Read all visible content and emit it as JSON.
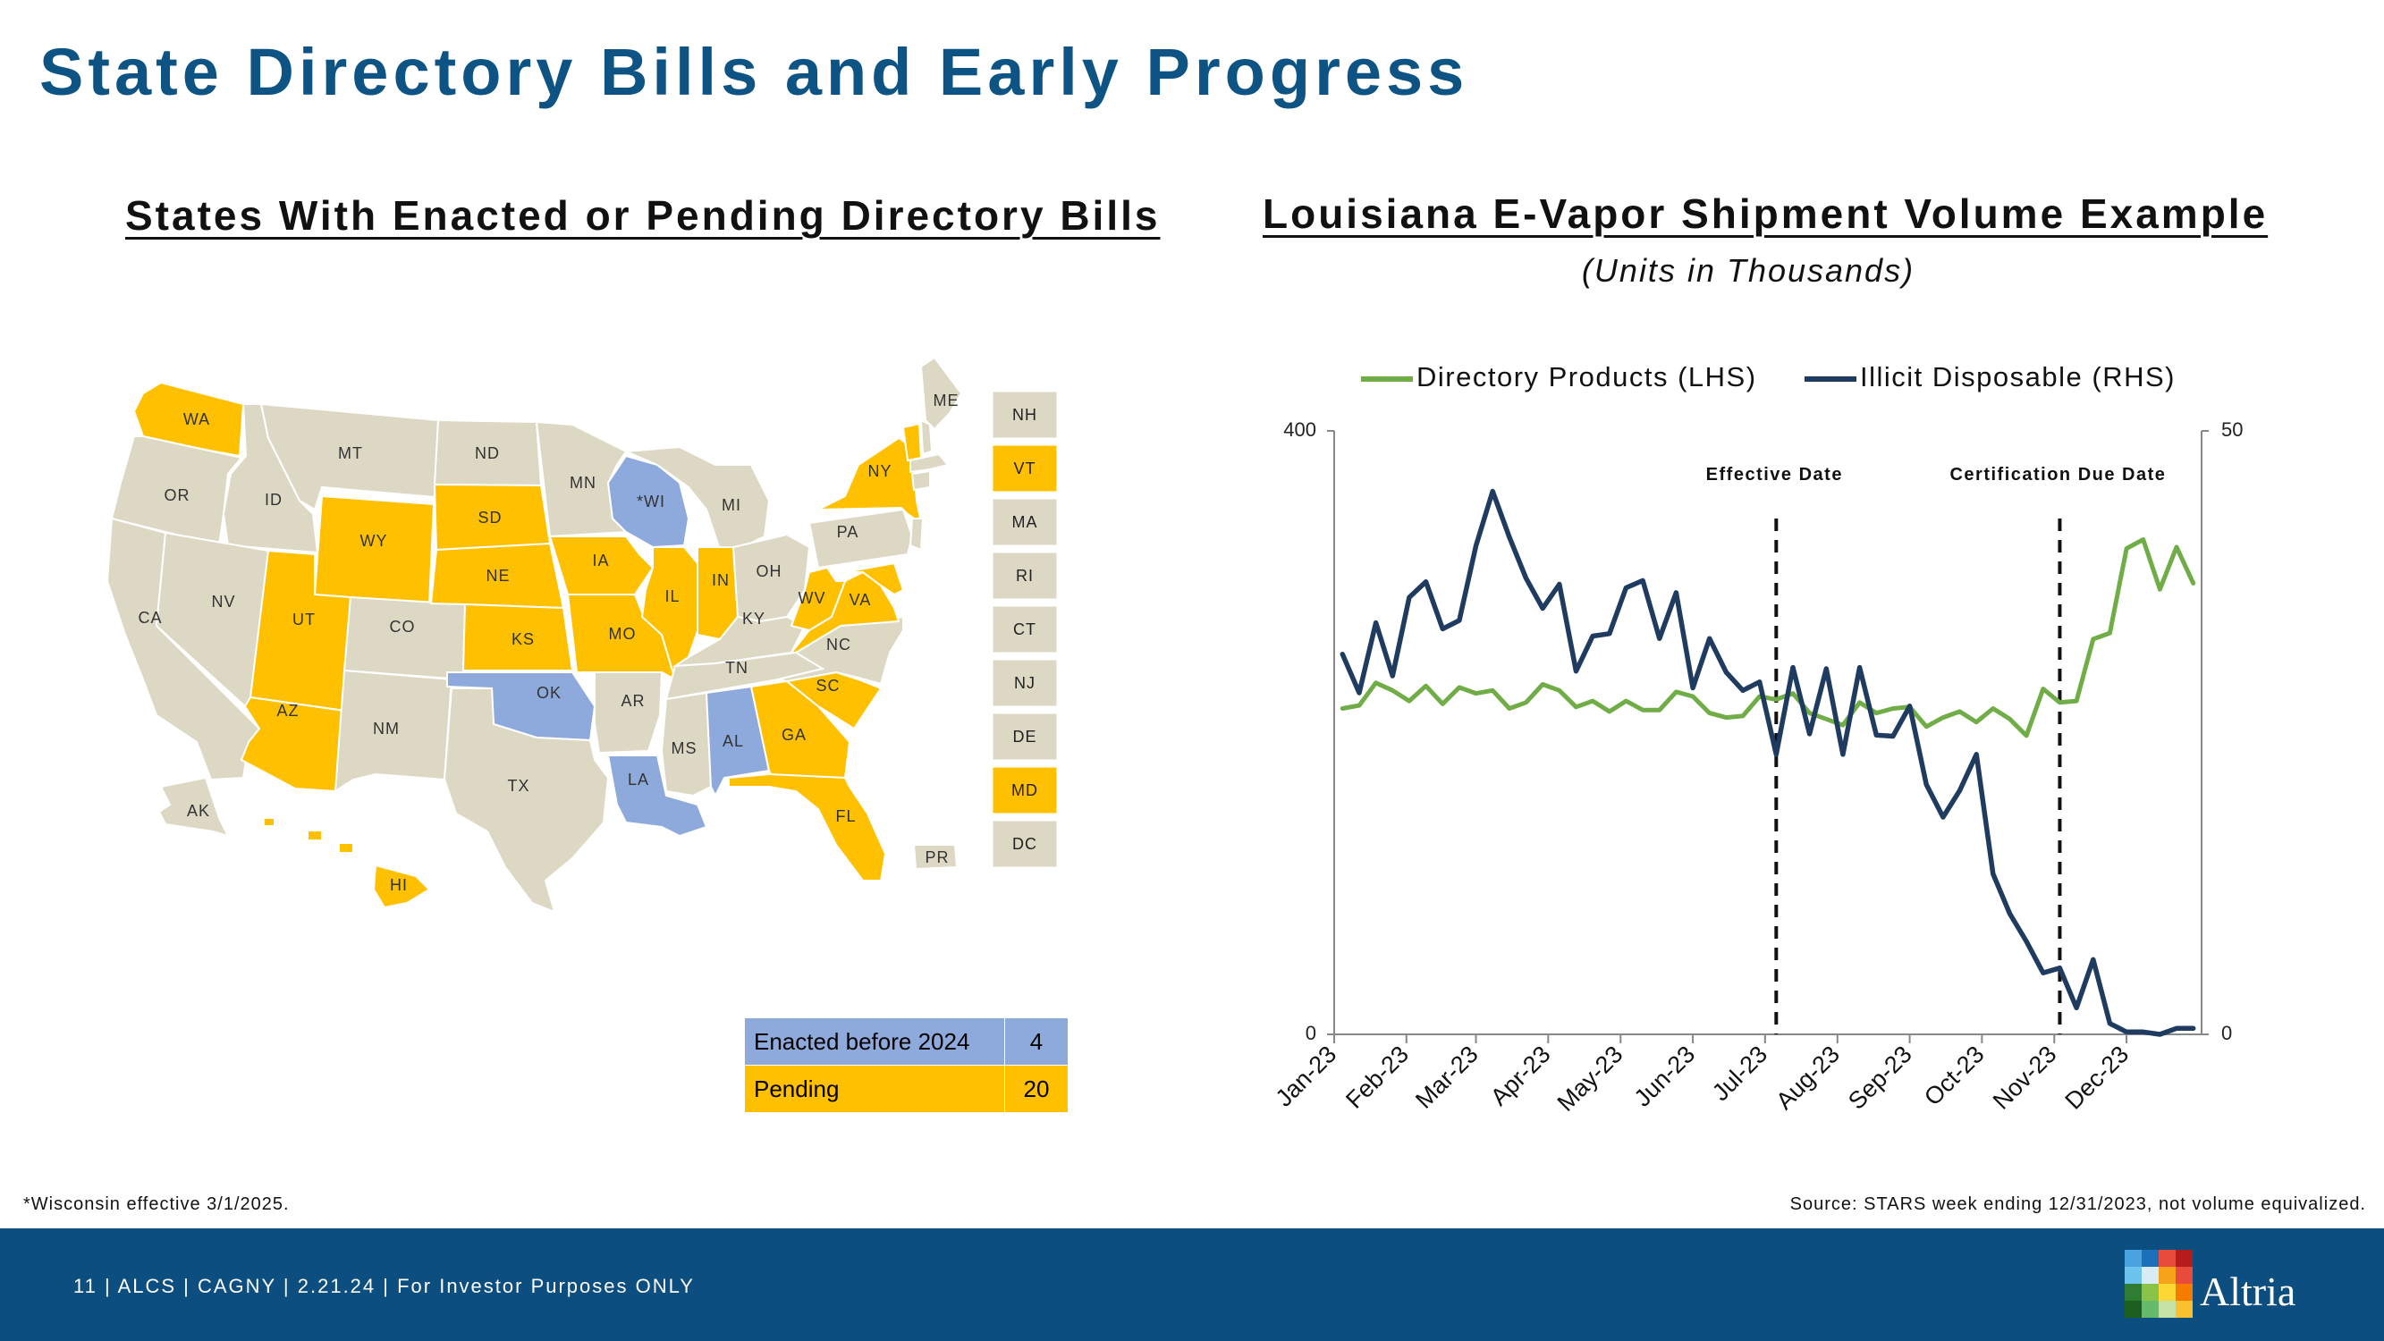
{
  "page": {
    "title": "State Directory Bills and Early Progress",
    "left_heading": "States With Enacted or Pending Directory Bills",
    "right_heading": "Louisiana E-Vapor Shipment Volume Example",
    "right_subheading": "(Units in Thousands)",
    "footnote": "*Wisconsin effective 3/1/2025.",
    "source": "Source: STARS week ending 12/31/2023, not volume equivalized.",
    "footer_text": "11 | ALCS | CAGNY | 2.21.24 | For Investor Purposes ONLY",
    "brand": "Altria"
  },
  "colors": {
    "enacted": "#8eaadc",
    "pending": "#ffc000",
    "none": "#ddd8c4",
    "title_blue": "#0d5384",
    "footer_blue": "#0d4e80",
    "directory_line": "#70ad47",
    "illicit_line": "#1f3c60"
  },
  "map": {
    "states": [
      {
        "abbr": "WA",
        "status": "pending"
      },
      {
        "abbr": "OR",
        "status": "none"
      },
      {
        "abbr": "CA",
        "status": "none"
      },
      {
        "abbr": "ID",
        "status": "none"
      },
      {
        "abbr": "NV",
        "status": "none"
      },
      {
        "abbr": "MT",
        "status": "none"
      },
      {
        "abbr": "WY",
        "status": "pending"
      },
      {
        "abbr": "UT",
        "status": "pending"
      },
      {
        "abbr": "AZ",
        "status": "pending"
      },
      {
        "abbr": "CO",
        "status": "none"
      },
      {
        "abbr": "NM",
        "status": "none"
      },
      {
        "abbr": "ND",
        "status": "none"
      },
      {
        "abbr": "SD",
        "status": "pending"
      },
      {
        "abbr": "NE",
        "status": "pending"
      },
      {
        "abbr": "KS",
        "status": "pending"
      },
      {
        "abbr": "OK",
        "status": "enacted"
      },
      {
        "abbr": "TX",
        "status": "none"
      },
      {
        "abbr": "MN",
        "status": "none"
      },
      {
        "abbr": "IA",
        "status": "pending"
      },
      {
        "abbr": "MO",
        "status": "pending"
      },
      {
        "abbr": "AR",
        "status": "none"
      },
      {
        "abbr": "LA",
        "status": "enacted"
      },
      {
        "abbr": "*WI",
        "status": "enacted"
      },
      {
        "abbr": "IL",
        "status": "pending"
      },
      {
        "abbr": "MI",
        "status": "none"
      },
      {
        "abbr": "IN",
        "status": "pending"
      },
      {
        "abbr": "OH",
        "status": "none"
      },
      {
        "abbr": "KY",
        "status": "none"
      },
      {
        "abbr": "TN",
        "status": "none"
      },
      {
        "abbr": "MS",
        "status": "none"
      },
      {
        "abbr": "AL",
        "status": "enacted"
      },
      {
        "abbr": "GA",
        "status": "pending"
      },
      {
        "abbr": "FL",
        "status": "pending"
      },
      {
        "abbr": "SC",
        "status": "pending"
      },
      {
        "abbr": "NC",
        "status": "none"
      },
      {
        "abbr": "VA",
        "status": "pending"
      },
      {
        "abbr": "WV",
        "status": "pending"
      },
      {
        "abbr": "PA",
        "status": "none"
      },
      {
        "abbr": "NY",
        "status": "pending"
      },
      {
        "abbr": "ME",
        "status": "none"
      },
      {
        "abbr": "AK",
        "status": "none"
      },
      {
        "abbr": "HI",
        "status": "pending"
      },
      {
        "abbr": "PR",
        "status": "none"
      }
    ],
    "small_states": [
      {
        "abbr": "NH",
        "status": "none"
      },
      {
        "abbr": "VT",
        "status": "pending"
      },
      {
        "abbr": "MA",
        "status": "none"
      },
      {
        "abbr": "RI",
        "status": "none"
      },
      {
        "abbr": "CT",
        "status": "none"
      },
      {
        "abbr": "NJ",
        "status": "none"
      },
      {
        "abbr": "DE",
        "status": "none"
      },
      {
        "abbr": "MD",
        "status": "pending"
      },
      {
        "abbr": "DC",
        "status": "none"
      }
    ]
  },
  "legend_table": [
    {
      "label": "Enacted before 2024",
      "value": "4"
    },
    {
      "label": "Pending",
      "value": "20"
    }
  ],
  "chart_data": {
    "type": "line",
    "title": "Louisiana E-Vapor Shipment Volume Example",
    "subtitle": "(Units in Thousands)",
    "xlabel": "",
    "ylabel": "",
    "x_tick_labels": [
      "Jan-23",
      "Feb-23",
      "Mar-23",
      "Apr-23",
      "May-23",
      "Jun-23",
      "Jul-23",
      "Aug-23",
      "Sep-23",
      "Oct-23",
      "Nov-23",
      "Dec-23"
    ],
    "left_axis": {
      "range": [
        0,
        400
      ],
      "tick_labels": [
        "0",
        "400"
      ]
    },
    "right_axis": {
      "range": [
        0,
        50
      ],
      "tick_labels": [
        "0",
        "50"
      ]
    },
    "weeks": 52,
    "legend_position": "top",
    "series": [
      {
        "name": "Directory Products (LHS)",
        "axis": "left",
        "color": "#70ad47",
        "values": [
          216,
          218,
          233,
          228,
          221,
          231,
          219,
          230,
          226,
          228,
          216,
          220,
          232,
          228,
          217,
          221,
          214,
          221,
          215,
          215,
          227,
          224,
          213,
          210,
          211,
          224,
          222,
          226,
          213,
          209,
          205,
          220,
          213,
          216,
          217,
          204,
          210,
          214,
          207,
          216,
          209,
          198,
          229,
          220,
          221,
          262,
          266,
          322,
          328,
          295,
          323,
          299
        ]
      },
      {
        "name": "Illicit Disposable (RHS)",
        "axis": "right",
        "color": "#1f3c60",
        "values": [
          31.5,
          28.3,
          34.1,
          29.7,
          36.2,
          37.5,
          33.6,
          34.3,
          40.5,
          45.0,
          41.2,
          37.8,
          35.3,
          37.3,
          30.1,
          33.0,
          33.2,
          37.0,
          37.6,
          32.8,
          36.6,
          28.7,
          32.8,
          30.0,
          28.5,
          29.2,
          23.2,
          30.4,
          24.9,
          30.3,
          23.2,
          30.4,
          24.8,
          24.7,
          27.2,
          20.7,
          18.0,
          20.2,
          23.2,
          13.3,
          10.0,
          7.7,
          5.1,
          5.5,
          2.2,
          6.2,
          0.9,
          0.2,
          0.2,
          0.0,
          0.5,
          0.5
        ]
      }
    ],
    "annotations": [
      {
        "label": "Effective Date",
        "week": 26
      },
      {
        "label": "Certification Due Date",
        "week": 43
      }
    ]
  }
}
